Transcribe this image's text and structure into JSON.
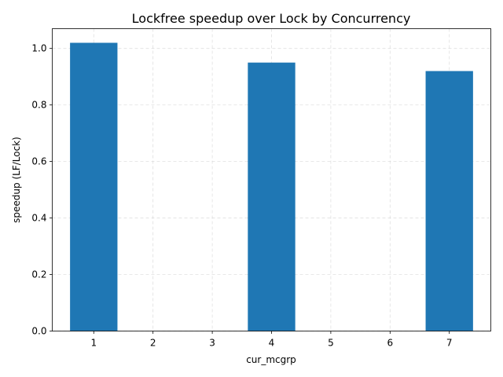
{
  "chart_data": {
    "type": "bar",
    "title": "Lockfree speedup over Lock by Concurrency",
    "xlabel": "cur_mcgrp",
    "ylabel": "speedup (LF/Lock)",
    "x": [
      1,
      4,
      7
    ],
    "values": [
      1.02,
      0.95,
      0.92
    ],
    "xlim": [
      0.3,
      7.7
    ],
    "ylim": [
      0,
      1.07
    ],
    "xticks": [
      "1",
      "2",
      "3",
      "4",
      "5",
      "6",
      "7"
    ],
    "yticks": [
      "0.0",
      "0.2",
      "0.4",
      "0.6",
      "0.8",
      "1.0"
    ],
    "grid": true,
    "bar_color": "#1f77b4"
  }
}
